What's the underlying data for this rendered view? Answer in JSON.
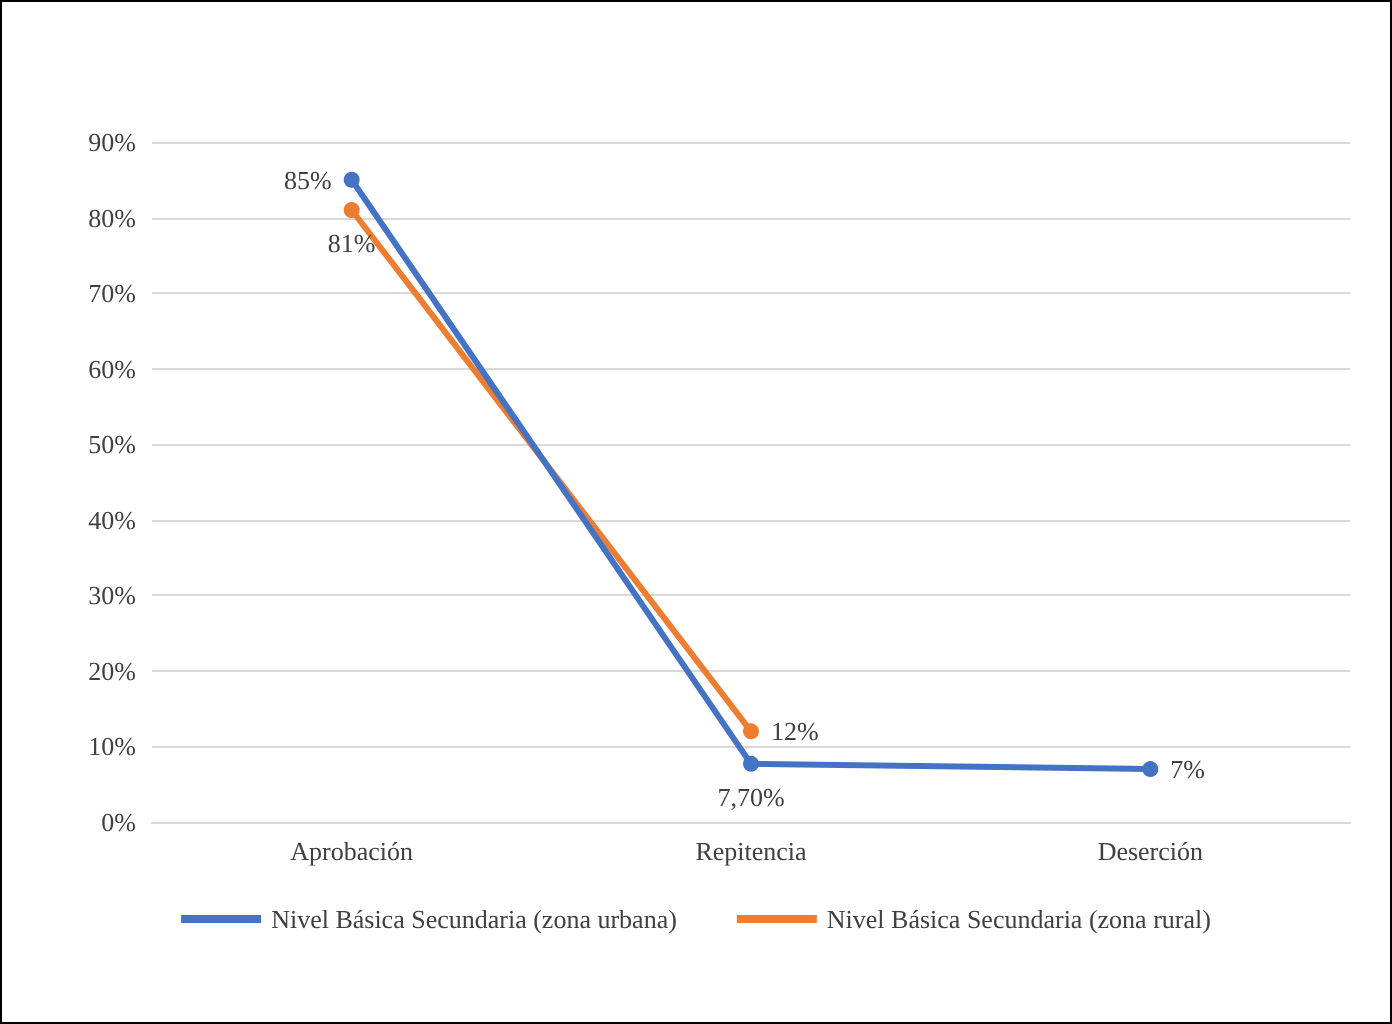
{
  "chart_data": {
    "type": "line",
    "categories": [
      "Aprobación",
      "Repitencia",
      "Deserción"
    ],
    "series": [
      {
        "name": "Nivel Básica Secundaria (zona urbana)",
        "color": "#4472c4",
        "values": [
          85,
          7.7,
          7
        ],
        "value_labels": [
          "85%",
          "7,70%",
          "7%"
        ]
      },
      {
        "name": "Nivel Básica Secundaria (zona rural)",
        "color": "#ed7d31",
        "values": [
          81,
          12,
          null
        ],
        "value_labels": [
          "81%",
          "12%",
          null
        ]
      }
    ],
    "ylim": [
      0,
      90
    ],
    "yticks": [
      {
        "value": 0,
        "label": "0%"
      },
      {
        "value": 10,
        "label": "10%"
      },
      {
        "value": 20,
        "label": "20%"
      },
      {
        "value": 30,
        "label": "30%"
      },
      {
        "value": 40,
        "label": "40%"
      },
      {
        "value": 50,
        "label": "50%"
      },
      {
        "value": 60,
        "label": "60%"
      },
      {
        "value": 70,
        "label": "70%"
      },
      {
        "value": 80,
        "label": "80%"
      },
      {
        "value": 90,
        "label": "90%"
      }
    ],
    "grid": "y",
    "legend": "bottom",
    "marker": "circle",
    "line_style": "solid"
  }
}
